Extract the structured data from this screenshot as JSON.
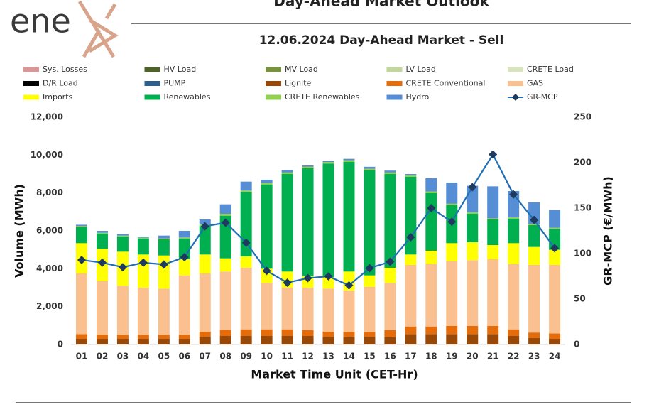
{
  "logo": "ene",
  "chart_data": {
    "type": "bar",
    "title": "Day-Ahead Market Outlook",
    "subtitle": "12.06.2024  Day-Ahead Market - Sell",
    "x_label": "Market Time Unit (CET-Hr)",
    "y_label": "Volume (MWh)",
    "y2_label": "GR-MCP (€/MWh)",
    "categories": [
      "01",
      "02",
      "03",
      "04",
      "05",
      "06",
      "07",
      "08",
      "09",
      "10",
      "11",
      "12",
      "13",
      "14",
      "15",
      "16",
      "17",
      "18",
      "19",
      "20",
      "21",
      "22",
      "23",
      "24"
    ],
    "ylim": [
      0,
      12000
    ],
    "yticks": [
      0,
      {
        "value": 2000,
        "label": "2,000"
      },
      {
        "value": 4000,
        "label": "4,000"
      },
      {
        "value": 6000,
        "label": "6,000"
      },
      {
        "value": 8000,
        "label": "8,000"
      },
      {
        "value": 10000,
        "label": "10,000"
      },
      {
        "value": 12000,
        "label": "12,000"
      }
    ],
    "y2lim": [
      0,
      250
    ],
    "y2ticks": [
      0,
      50,
      100,
      150,
      200,
      250
    ],
    "stacked": true,
    "series": [
      {
        "name": "Sys. Losses",
        "color": "#d99694",
        "values": [
          0,
          0,
          0,
          0,
          0,
          0,
          0,
          0,
          0,
          0,
          0,
          0,
          0,
          0,
          0,
          0,
          0,
          0,
          0,
          0,
          0,
          0,
          0,
          0
        ]
      },
      {
        "name": "HV Load",
        "color": "#4f6228",
        "values": [
          0,
          0,
          0,
          0,
          0,
          0,
          0,
          0,
          0,
          0,
          0,
          0,
          0,
          0,
          0,
          0,
          0,
          0,
          0,
          0,
          0,
          0,
          0,
          0
        ]
      },
      {
        "name": "MV Load",
        "color": "#77933c",
        "values": [
          0,
          0,
          0,
          0,
          0,
          0,
          0,
          0,
          0,
          0,
          0,
          0,
          0,
          0,
          0,
          0,
          0,
          0,
          0,
          0,
          0,
          0,
          0,
          0
        ]
      },
      {
        "name": "LV Load",
        "color": "#c3d69b",
        "values": [
          0,
          0,
          0,
          0,
          0,
          0,
          0,
          0,
          0,
          0,
          0,
          0,
          0,
          0,
          0,
          0,
          0,
          0,
          0,
          0,
          0,
          0,
          0,
          0
        ]
      },
      {
        "name": "CRETE Load",
        "color": "#d7e4bd",
        "values": [
          0,
          0,
          0,
          0,
          0,
          0,
          0,
          0,
          0,
          0,
          0,
          0,
          0,
          0,
          0,
          0,
          0,
          0,
          0,
          0,
          0,
          0,
          0,
          0
        ]
      },
      {
        "name": "D/R Load",
        "color": "#000000",
        "values": [
          0,
          0,
          0,
          0,
          0,
          0,
          0,
          0,
          0,
          0,
          0,
          0,
          0,
          0,
          0,
          0,
          0,
          0,
          0,
          0,
          0,
          0,
          0,
          0
        ]
      },
      {
        "name": "PUMP",
        "color": "#2e5f8c",
        "values": [
          0,
          0,
          0,
          0,
          0,
          0,
          0,
          0,
          0,
          0,
          0,
          0,
          0,
          0,
          0,
          0,
          0,
          0,
          0,
          0,
          0,
          0,
          0,
          0
        ]
      },
      {
        "name": "Lignite",
        "color": "#984807",
        "values": [
          300,
          300,
          300,
          300,
          300,
          300,
          400,
          450,
          450,
          450,
          450,
          450,
          400,
          400,
          400,
          400,
          550,
          550,
          550,
          550,
          550,
          450,
          350,
          300
        ]
      },
      {
        "name": "CRETE Conventional",
        "color": "#e46c0a",
        "values": [
          250,
          230,
          220,
          220,
          220,
          230,
          280,
          330,
          350,
          350,
          350,
          300,
          280,
          280,
          270,
          350,
          400,
          400,
          430,
          430,
          430,
          350,
          280,
          280
        ]
      },
      {
        "name": "GAS",
        "color": "#fac090",
        "values": [
          3200,
          2820,
          2580,
          2480,
          2430,
          3120,
          3070,
          3070,
          3250,
          2450,
          2200,
          2250,
          2270,
          2170,
          2380,
          2500,
          3250,
          3300,
          3420,
          3470,
          3520,
          3450,
          3570,
          3620
        ]
      },
      {
        "name": "Imports",
        "color": "#ffff00",
        "values": [
          1600,
          1700,
          1800,
          1750,
          1750,
          850,
          1000,
          700,
          600,
          750,
          850,
          600,
          600,
          1000,
          600,
          800,
          550,
          700,
          950,
          950,
          750,
          1100,
          950,
          800
        ]
      },
      {
        "name": "Renewables",
        "color": "#00b050",
        "values": [
          850,
          800,
          800,
          850,
          850,
          1100,
          1500,
          2250,
          3400,
          4450,
          5150,
          5700,
          6000,
          5800,
          5550,
          4950,
          4100,
          3050,
          2000,
          1500,
          1350,
          1300,
          1150,
          1100
        ]
      },
      {
        "name": "CRETE Renewables",
        "color": "#92d050",
        "values": [
          50,
          50,
          50,
          40,
          50,
          50,
          80,
          100,
          80,
          80,
          80,
          80,
          80,
          80,
          80,
          80,
          80,
          80,
          80,
          80,
          60,
          60,
          60,
          60
        ]
      },
      {
        "name": "Hydro",
        "color": "#558ed5",
        "values": [
          70,
          100,
          80,
          60,
          150,
          350,
          270,
          500,
          470,
          170,
          120,
          70,
          70,
          70,
          100,
          100,
          70,
          700,
          1120,
          1400,
          1690,
          1390,
          1140,
          940
        ]
      },
      {
        "name": "GR-MCP",
        "color": "#1f6fb5",
        "type": "line",
        "axis": "y2",
        "values": [
          93,
          90,
          85,
          90,
          88,
          96,
          130,
          134,
          112,
          81,
          68,
          73,
          75,
          65,
          84,
          91,
          118,
          150,
          135,
          173,
          209,
          165,
          137,
          106
        ]
      }
    ]
  }
}
